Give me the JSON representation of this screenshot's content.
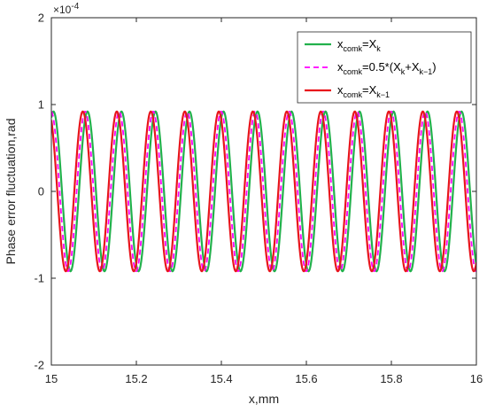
{
  "chart_data": {
    "type": "line",
    "title": "",
    "xlabel": "x,mm",
    "ylabel": "Phase error fluctuation,rad",
    "xlim": [
      15,
      16
    ],
    "ylim": [
      -0.0002,
      0.0002
    ],
    "x_ticks": [
      "15",
      "15.2",
      "15.4",
      "15.6",
      "15.8",
      "16"
    ],
    "y_ticks": [
      "-2",
      "-1",
      "0",
      "1",
      "2"
    ],
    "y_exponent": {
      "base": "×10",
      "power": "-4"
    },
    "grid": false,
    "legend_position": "top-right",
    "period_mm": 0.08,
    "amplitude": 9.2e-05,
    "series": [
      {
        "name": "x_comk=X_k",
        "color": "#22b14c",
        "style": "solid",
        "first_peak_x": 15.005,
        "legend_parts": [
          {
            "t": "x",
            "sub": false
          },
          {
            "t": "comk",
            "sub": true
          },
          {
            "t": "=X",
            "sub": false
          },
          {
            "t": "k",
            "sub": true
          }
        ]
      },
      {
        "name": "x_comk=0.5*(X_k+X_k-1)",
        "color": "#ff00ff",
        "style": "dashed",
        "first_peak_x": 14.9995,
        "legend_parts": [
          {
            "t": "x",
            "sub": false
          },
          {
            "t": "comk",
            "sub": true
          },
          {
            "t": "=0.5*(X",
            "sub": false
          },
          {
            "t": "k",
            "sub": true
          },
          {
            "t": "+X",
            "sub": false
          },
          {
            "t": "k−1",
            "sub": true
          },
          {
            "t": ")",
            "sub": false
          }
        ]
      },
      {
        "name": "x_comk=X_k-1",
        "color": "#e8141c",
        "style": "solid",
        "first_peak_x": 14.994,
        "legend_parts": [
          {
            "t": "x",
            "sub": false
          },
          {
            "t": "comk",
            "sub": true
          },
          {
            "t": "=X",
            "sub": false
          },
          {
            "t": "k−1",
            "sub": true
          }
        ]
      }
    ]
  }
}
